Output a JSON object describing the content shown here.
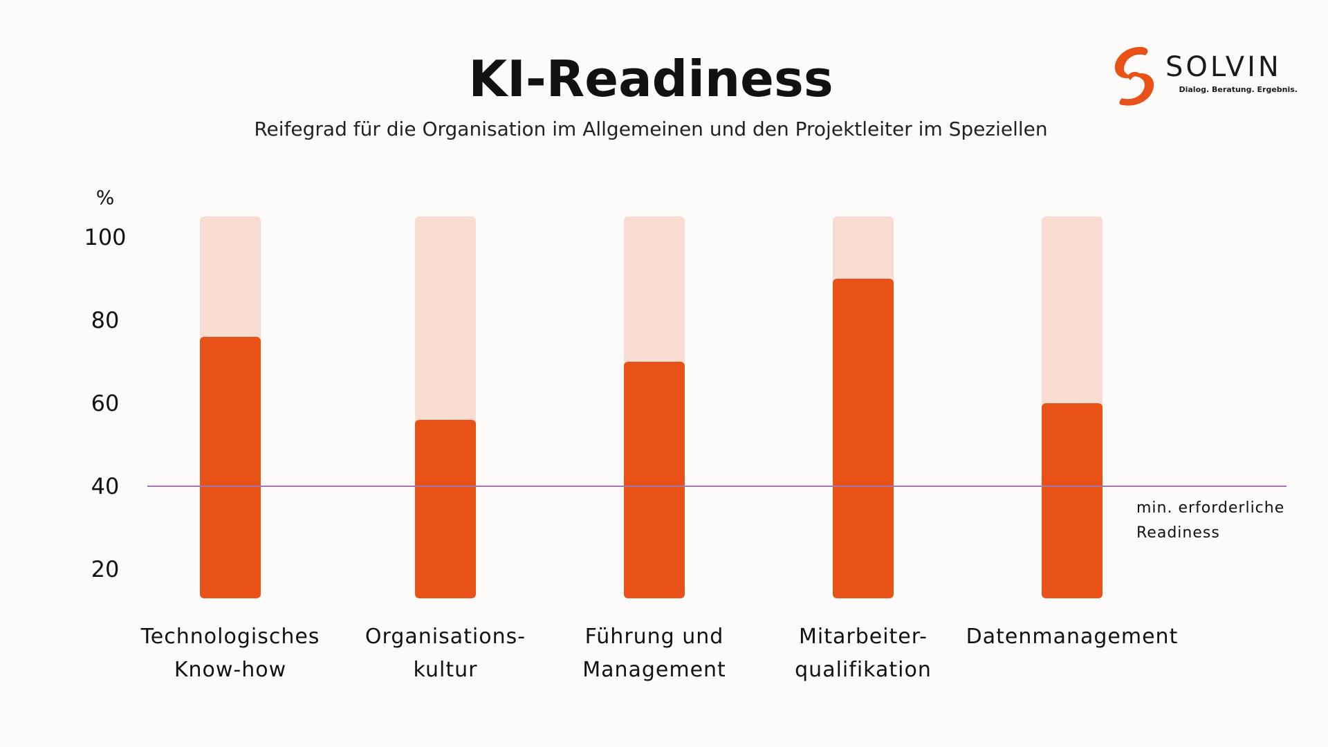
{
  "header": {
    "title": "KI-Readiness",
    "subtitle": "Reifegrad für die Organisation im Allgemeinen und den Projektleiter im Speziellen"
  },
  "logo": {
    "brand": "SOLVIN",
    "tagline": "Dialog. Beratung. Ergebnis.",
    "icon": "solvin-swirl-icon"
  },
  "colors": {
    "background": "#fcfbf9",
    "bar_value": "#e85216",
    "bar_track": "#f8dbd1",
    "reference_line": "#a375b0",
    "logo_orange": "#e85216",
    "logo_dark": "#1a1a1a"
  },
  "chart_data": {
    "type": "bar",
    "unit_label": "%",
    "categories": [
      [
        "Technologisches",
        "Know-how"
      ],
      [
        "Organisations-",
        "kultur"
      ],
      [
        "Führung und",
        "Management"
      ],
      [
        "Mitarbeiter-",
        "qualifikation"
      ],
      [
        "Datenmanagement"
      ]
    ],
    "values": [
      76,
      56,
      70,
      90,
      60
    ],
    "track_max": 105,
    "y_ticks": [
      20,
      40,
      60,
      80,
      100
    ],
    "ylim": [
      13,
      105
    ],
    "reference_line": {
      "value": 40,
      "label": [
        "min. erforderliche",
        "Readiness"
      ]
    },
    "grid": false,
    "legend": "none"
  }
}
